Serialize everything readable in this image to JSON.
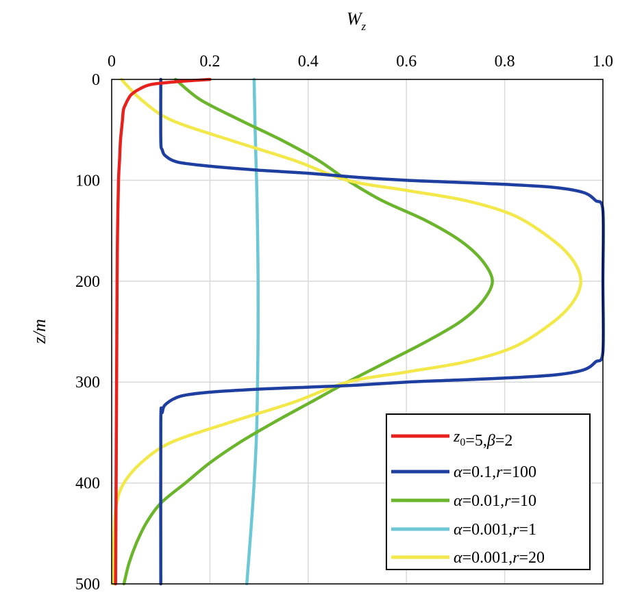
{
  "chart_data": {
    "type": "line",
    "xlabel": "W_z",
    "xlabel_main": "W",
    "xlabel_sub": "z",
    "ylabel": "z/m",
    "xlim": [
      0,
      1.0
    ],
    "ylim": [
      0,
      500
    ],
    "y_inverted": true,
    "x_axis_position": "top",
    "grid": true,
    "legend_position": "bottom-right",
    "x_ticks": [
      "0",
      "0.2",
      "0.4",
      "0.6",
      "0.8",
      "1.0"
    ],
    "y_ticks": [
      "0",
      "100",
      "200",
      "300",
      "400",
      "500"
    ],
    "series": [
      {
        "name": "z0=5,β=2",
        "legend_parts": [
          [
            "z",
            "it",
            "normal"
          ],
          [
            "0",
            "",
            "sub"
          ],
          [
            "=5,",
            "",
            "normal"
          ],
          [
            "β",
            "it",
            "normal"
          ],
          [
            "=2",
            "",
            "normal"
          ]
        ],
        "color": "#e8211d",
        "points": [
          [
            0.2,
            0
          ],
          [
            0.14,
            2
          ],
          [
            0.08,
            5
          ],
          [
            0.055,
            10
          ],
          [
            0.04,
            15
          ],
          [
            0.033,
            20
          ],
          [
            0.028,
            25
          ],
          [
            0.024,
            30
          ],
          [
            0.022,
            40
          ],
          [
            0.02,
            50
          ],
          [
            0.018,
            60
          ],
          [
            0.016,
            80
          ],
          [
            0.014,
            100
          ],
          [
            0.012,
            150
          ],
          [
            0.011,
            200
          ],
          [
            0.01,
            300
          ],
          [
            0.009,
            400
          ],
          [
            0.008,
            500
          ]
        ]
      },
      {
        "name": "α=0.1,r=100",
        "legend_parts": [
          [
            "α",
            "it",
            "normal"
          ],
          [
            "=0.1,",
            "",
            "normal"
          ],
          [
            "r",
            "it",
            "normal"
          ],
          [
            "=100",
            "",
            "normal"
          ]
        ],
        "color": "#1f3fa0",
        "points": [
          [
            0.1,
            0
          ],
          [
            0.1,
            60
          ],
          [
            0.103,
            70
          ],
          [
            0.11,
            76
          ],
          [
            0.135,
            82
          ],
          [
            0.2,
            86
          ],
          [
            0.3,
            90
          ],
          [
            0.4,
            93
          ],
          [
            0.5,
            97
          ],
          [
            0.6,
            100
          ],
          [
            0.7,
            102
          ],
          [
            0.8,
            104
          ],
          [
            0.9,
            107
          ],
          [
            0.96,
            112
          ],
          [
            0.985,
            120
          ],
          [
            1.0,
            130
          ],
          [
            1.0,
            200
          ],
          [
            1.0,
            270
          ],
          [
            0.985,
            280
          ],
          [
            0.96,
            288
          ],
          [
            0.9,
            293
          ],
          [
            0.8,
            296
          ],
          [
            0.7,
            298
          ],
          [
            0.6,
            300
          ],
          [
            0.5,
            303
          ],
          [
            0.4,
            305
          ],
          [
            0.3,
            307
          ],
          [
            0.2,
            310
          ],
          [
            0.14,
            314
          ],
          [
            0.11,
            322
          ],
          [
            0.103,
            330
          ],
          [
            0.1,
            340
          ],
          [
            0.1,
            500
          ]
        ]
      },
      {
        "name": "α=0.01,r=10",
        "legend_parts": [
          [
            "α",
            "it",
            "normal"
          ],
          [
            "=0.01,",
            "",
            "normal"
          ],
          [
            "r",
            "it",
            "normal"
          ],
          [
            "=10",
            "",
            "normal"
          ]
        ],
        "color": "#6bb52c",
        "points": [
          [
            0.13,
            0
          ],
          [
            0.18,
            20
          ],
          [
            0.26,
            40
          ],
          [
            0.345,
            60
          ],
          [
            0.42,
            80
          ],
          [
            0.48,
            100
          ],
          [
            0.55,
            120
          ],
          [
            0.64,
            140
          ],
          [
            0.71,
            160
          ],
          [
            0.755,
            180
          ],
          [
            0.775,
            200
          ],
          [
            0.755,
            220
          ],
          [
            0.71,
            240
          ],
          [
            0.64,
            260
          ],
          [
            0.56,
            280
          ],
          [
            0.48,
            300
          ],
          [
            0.405,
            320
          ],
          [
            0.33,
            340
          ],
          [
            0.26,
            360
          ],
          [
            0.2,
            380
          ],
          [
            0.15,
            400
          ],
          [
            0.1,
            420
          ],
          [
            0.07,
            440
          ],
          [
            0.05,
            460
          ],
          [
            0.035,
            480
          ],
          [
            0.025,
            500
          ]
        ]
      },
      {
        "name": "α=0.001,r=1",
        "legend_parts": [
          [
            "α",
            "it",
            "normal"
          ],
          [
            "=0.001,",
            "",
            "normal"
          ],
          [
            "r",
            "it",
            "normal"
          ],
          [
            "=1",
            "",
            "normal"
          ]
        ],
        "color": "#6cc7d6",
        "points": [
          [
            0.29,
            0
          ],
          [
            0.292,
            50
          ],
          [
            0.295,
            100
          ],
          [
            0.297,
            150
          ],
          [
            0.298,
            200
          ],
          [
            0.298,
            250
          ],
          [
            0.297,
            300
          ],
          [
            0.295,
            350
          ],
          [
            0.29,
            400
          ],
          [
            0.283,
            450
          ],
          [
            0.275,
            500
          ]
        ]
      },
      {
        "name": "α=0.001,r=20",
        "legend_parts": [
          [
            "α",
            "it",
            "normal"
          ],
          [
            "=0.001,",
            "",
            "normal"
          ],
          [
            "r",
            "it",
            "normal"
          ],
          [
            "=20",
            "",
            "normal"
          ]
        ],
        "color": "#f3e84a",
        "points": [
          [
            0.02,
            0
          ],
          [
            0.06,
            20
          ],
          [
            0.12,
            40
          ],
          [
            0.24,
            60
          ],
          [
            0.37,
            80
          ],
          [
            0.48,
            100
          ],
          [
            0.6,
            110
          ],
          [
            0.72,
            120
          ],
          [
            0.82,
            135
          ],
          [
            0.9,
            160
          ],
          [
            0.94,
            180
          ],
          [
            0.955,
            200
          ],
          [
            0.94,
            220
          ],
          [
            0.9,
            240
          ],
          [
            0.82,
            265
          ],
          [
            0.72,
            280
          ],
          [
            0.6,
            290
          ],
          [
            0.48,
            300
          ],
          [
            0.37,
            320
          ],
          [
            0.24,
            340
          ],
          [
            0.12,
            360
          ],
          [
            0.06,
            380
          ],
          [
            0.025,
            400
          ],
          [
            0.01,
            420
          ],
          [
            0.005,
            450
          ],
          [
            0.003,
            500
          ]
        ]
      }
    ]
  }
}
